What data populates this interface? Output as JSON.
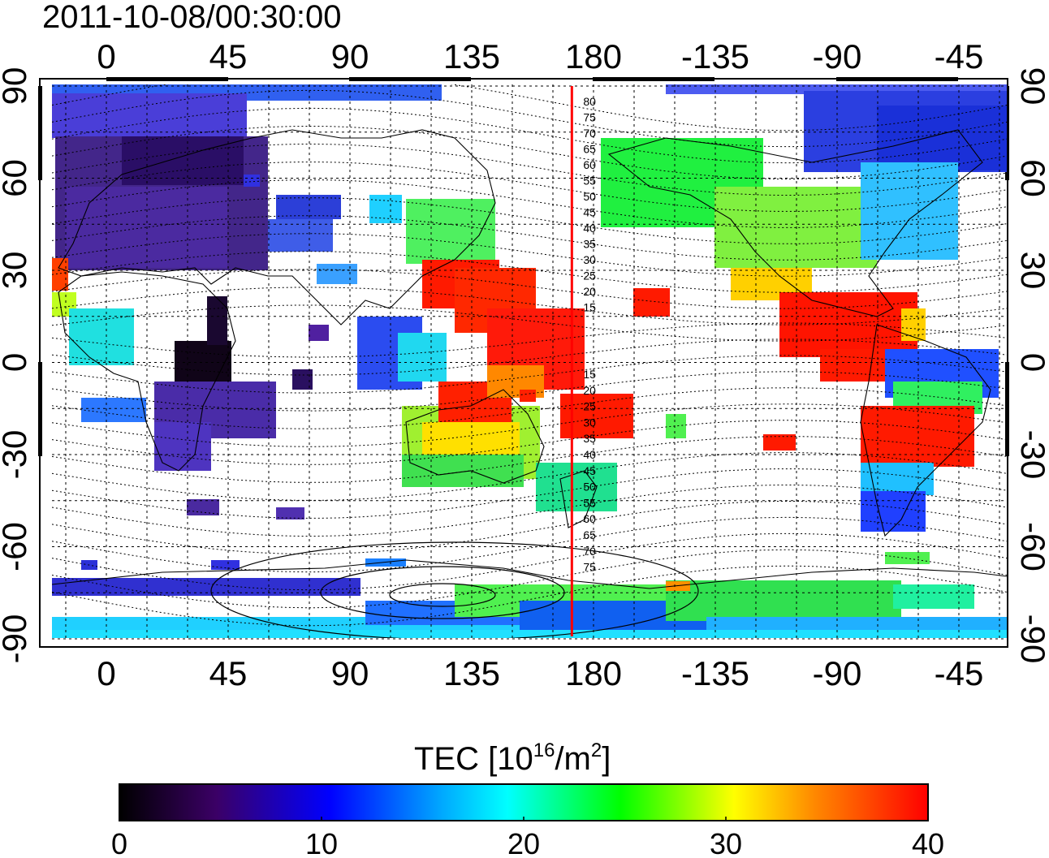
{
  "title": "2011-10-08/00:30:00",
  "map": {
    "lon_ticks": [
      "0",
      "45",
      "90",
      "135",
      "180",
      "-135",
      "-90",
      "-45"
    ],
    "lat_ticks": [
      "90",
      "60",
      "30",
      "0",
      "-30",
      "-60",
      "-90"
    ],
    "red_line_lon": 172,
    "dip_labels_north": [
      "80",
      "75",
      "70",
      "65",
      "60",
      "55",
      "50",
      "45",
      "40",
      "35",
      "30",
      "25",
      "20",
      "15"
    ],
    "dip_labels_south": [
      "15",
      "20",
      "25",
      "30",
      "35",
      "40",
      "45",
      "50",
      "55",
      "60",
      "65",
      "70",
      "75"
    ]
  },
  "colorbar": {
    "label_prefix": "TEC  [10",
    "label_exp1": "16",
    "label_mid": "/m",
    "label_exp2": "2",
    "label_suffix": "]",
    "ticks": [
      "0",
      "10",
      "20",
      "30",
      "40"
    ],
    "range": [
      0,
      40
    ],
    "colormap": [
      "#000000",
      "#3b0066",
      "#0000ff",
      "#00ffff",
      "#00ff00",
      "#ffff00",
      "#ff8800",
      "#ff0000"
    ]
  },
  "tec_patches": [
    {
      "region": "arctic-north-america",
      "tec": 10
    },
    {
      "region": "europe-west-asia",
      "tec": 5
    },
    {
      "region": "central-asia",
      "tec": 11
    },
    {
      "region": "africa-east",
      "tec": 1
    },
    {
      "region": "southern-africa",
      "tec": 7
    },
    {
      "region": "southeast-asia",
      "tec": 15
    },
    {
      "region": "japan-pacific",
      "tec": 38
    },
    {
      "region": "australia",
      "tec": 27
    },
    {
      "region": "new-zealand",
      "tec": 20
    },
    {
      "region": "north-america",
      "tec": 21
    },
    {
      "region": "central-america",
      "tec": 40
    },
    {
      "region": "south-america",
      "tec": 38
    },
    {
      "region": "antarctica",
      "tec": 18
    }
  ]
}
